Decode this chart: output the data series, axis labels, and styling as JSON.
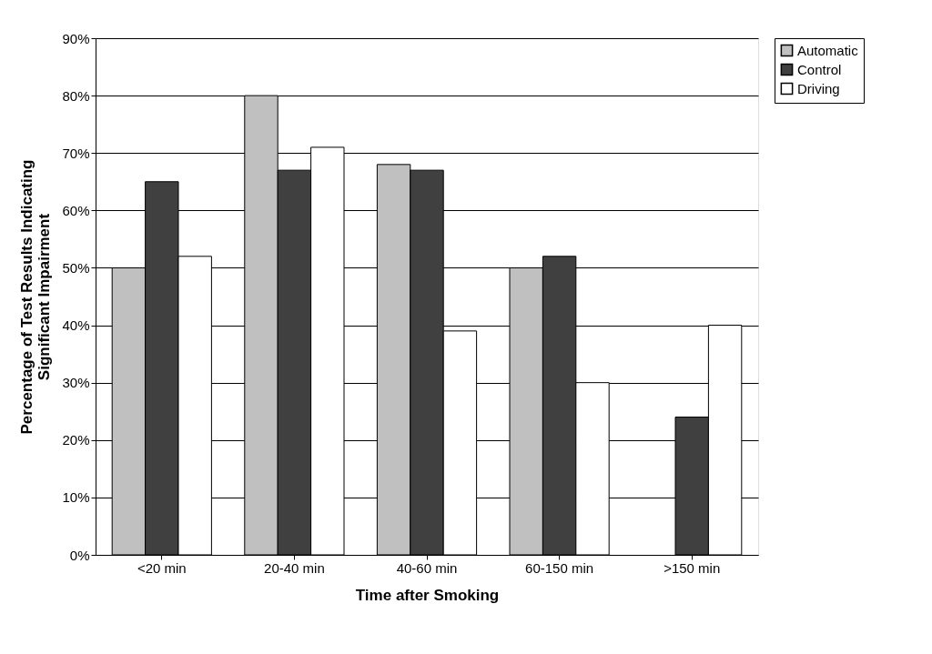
{
  "chart_data": {
    "type": "bar",
    "xlabel": "Time after Smoking",
    "ylabel": "Percentage of Test Results Indicating Significant Impairment",
    "categories": [
      "<20 min",
      "20-40 min",
      "40-60 min",
      "60-150 min",
      ">150 min"
    ],
    "series": [
      {
        "name": "Automatic",
        "color": "#c0c0c0",
        "values": [
          50,
          80,
          68,
          50,
          null
        ]
      },
      {
        "name": "Control",
        "color": "#404040",
        "values": [
          65,
          67,
          67,
          52,
          24
        ]
      },
      {
        "name": "Driving",
        "color": "#ffffff",
        "values": [
          52,
          71,
          39,
          30,
          40
        ]
      }
    ],
    "ylim": [
      0,
      90
    ],
    "yticks": [
      {
        "value": 0,
        "label": "0%"
      },
      {
        "value": 10,
        "label": "10%"
      },
      {
        "value": 20,
        "label": "20%"
      },
      {
        "value": 30,
        "label": "30%"
      },
      {
        "value": 40,
        "label": "40%"
      },
      {
        "value": 50,
        "label": "50%"
      },
      {
        "value": 60,
        "label": "60%"
      },
      {
        "value": 70,
        "label": "70%"
      },
      {
        "value": 80,
        "label": "80%"
      },
      {
        "value": 90,
        "label": "90%"
      }
    ],
    "grid": "y",
    "legend": "right"
  }
}
